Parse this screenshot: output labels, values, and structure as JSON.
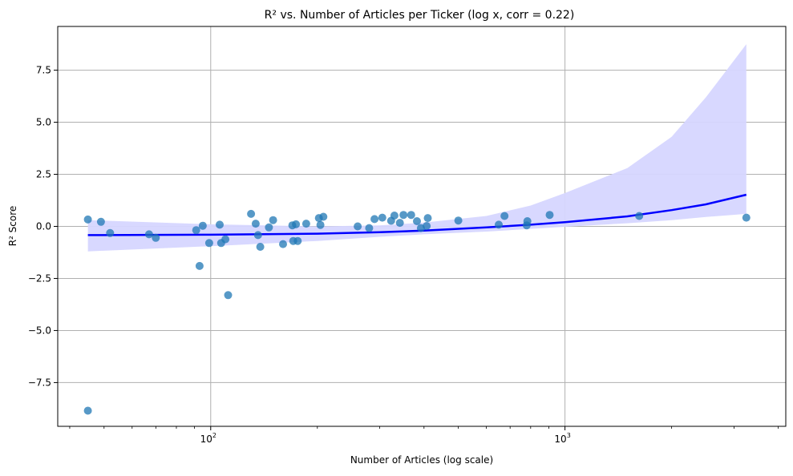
{
  "chart_data": {
    "type": "scatter",
    "title": "R² vs. Number of Articles per Ticker (log x, corr = 0.22)",
    "xlabel": "Number of Articles (log scale)",
    "ylabel": "R² Score",
    "x_scale": "log",
    "xlim": [
      37,
      4200
    ],
    "ylim": [
      -9.6,
      9.6
    ],
    "grid": true,
    "x_ticks": [
      {
        "value": 100,
        "base": "10",
        "exp": "2"
      },
      {
        "value": 1000,
        "base": "10",
        "exp": "3"
      }
    ],
    "y_ticks": [
      {
        "value": 7.5,
        "label": "7.5"
      },
      {
        "value": 5.0,
        "label": "5.0"
      },
      {
        "value": 2.5,
        "label": "2.5"
      },
      {
        "value": 0.0,
        "label": "0.0"
      },
      {
        "value": -2.5,
        "label": "−2.5"
      },
      {
        "value": -5.0,
        "label": "−5.0"
      },
      {
        "value": -7.5,
        "label": "−7.5"
      }
    ],
    "colors": {
      "points": "#1f77b4",
      "fit_line": "#0000ff",
      "confidence_band": "#d6d6ff",
      "grid": "#b0b0b0"
    },
    "points": [
      {
        "x": 45,
        "y": 0.33
      },
      {
        "x": 45,
        "y": -8.85
      },
      {
        "x": 49,
        "y": 0.22
      },
      {
        "x": 52,
        "y": -0.32
      },
      {
        "x": 67,
        "y": -0.38
      },
      {
        "x": 70,
        "y": -0.55
      },
      {
        "x": 91,
        "y": -0.18
      },
      {
        "x": 93,
        "y": -1.9
      },
      {
        "x": 95,
        "y": 0.03
      },
      {
        "x": 99,
        "y": -0.8
      },
      {
        "x": 106,
        "y": 0.08
      },
      {
        "x": 107,
        "y": -0.8
      },
      {
        "x": 110,
        "y": -0.62
      },
      {
        "x": 112,
        "y": -3.3
      },
      {
        "x": 130,
        "y": 0.6
      },
      {
        "x": 134,
        "y": 0.13
      },
      {
        "x": 136,
        "y": -0.42
      },
      {
        "x": 138,
        "y": -0.98
      },
      {
        "x": 146,
        "y": -0.05
      },
      {
        "x": 150,
        "y": 0.3
      },
      {
        "x": 160,
        "y": -0.85
      },
      {
        "x": 170,
        "y": 0.05
      },
      {
        "x": 171,
        "y": -0.7
      },
      {
        "x": 174,
        "y": 0.1
      },
      {
        "x": 176,
        "y": -0.7
      },
      {
        "x": 186,
        "y": 0.13
      },
      {
        "x": 202,
        "y": 0.4
      },
      {
        "x": 204,
        "y": 0.07
      },
      {
        "x": 208,
        "y": 0.46
      },
      {
        "x": 260,
        "y": 0.0
      },
      {
        "x": 280,
        "y": -0.08
      },
      {
        "x": 290,
        "y": 0.35
      },
      {
        "x": 305,
        "y": 0.42
      },
      {
        "x": 323,
        "y": 0.27
      },
      {
        "x": 330,
        "y": 0.52
      },
      {
        "x": 342,
        "y": 0.17
      },
      {
        "x": 350,
        "y": 0.55
      },
      {
        "x": 368,
        "y": 0.55
      },
      {
        "x": 382,
        "y": 0.25
      },
      {
        "x": 392,
        "y": -0.08
      },
      {
        "x": 407,
        "y": 0.02
      },
      {
        "x": 410,
        "y": 0.4
      },
      {
        "x": 500,
        "y": 0.28
      },
      {
        "x": 650,
        "y": 0.08
      },
      {
        "x": 675,
        "y": 0.5
      },
      {
        "x": 780,
        "y": 0.05
      },
      {
        "x": 783,
        "y": 0.25
      },
      {
        "x": 905,
        "y": 0.55
      },
      {
        "x": 1620,
        "y": 0.5
      },
      {
        "x": 3250,
        "y": 0.42
      }
    ],
    "fit_line": [
      {
        "x": 45,
        "y": -0.42
      },
      {
        "x": 100,
        "y": -0.4
      },
      {
        "x": 200,
        "y": -0.35
      },
      {
        "x": 300,
        "y": -0.28
      },
      {
        "x": 400,
        "y": -0.2
      },
      {
        "x": 600,
        "y": -0.05
      },
      {
        "x": 800,
        "y": 0.08
      },
      {
        "x": 1000,
        "y": 0.2
      },
      {
        "x": 1500,
        "y": 0.48
      },
      {
        "x": 2000,
        "y": 0.78
      },
      {
        "x": 2500,
        "y": 1.06
      },
      {
        "x": 3250,
        "y": 1.52
      }
    ],
    "confidence_band": [
      {
        "x": 45,
        "lo": -1.2,
        "hi": 0.3
      },
      {
        "x": 100,
        "lo": -0.95,
        "hi": 0.1
      },
      {
        "x": 200,
        "lo": -0.7,
        "hi": 0.0
      },
      {
        "x": 300,
        "lo": -0.5,
        "hi": 0.05
      },
      {
        "x": 400,
        "lo": -0.38,
        "hi": 0.18
      },
      {
        "x": 600,
        "lo": -0.25,
        "hi": 0.5
      },
      {
        "x": 800,
        "lo": -0.12,
        "hi": 1.0
      },
      {
        "x": 1000,
        "lo": -0.02,
        "hi": 1.6
      },
      {
        "x": 1500,
        "lo": 0.15,
        "hi": 2.8
      },
      {
        "x": 2000,
        "lo": 0.3,
        "hi": 4.3
      },
      {
        "x": 2500,
        "lo": 0.45,
        "hi": 6.2
      },
      {
        "x": 3250,
        "lo": 0.6,
        "hi": 8.75
      }
    ]
  }
}
